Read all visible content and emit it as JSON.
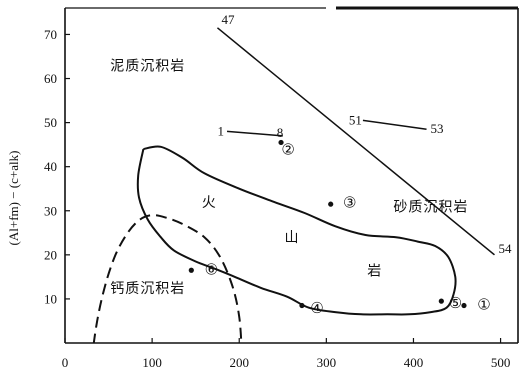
{
  "chart_data": {
    "type": "scatter",
    "ylabel": "(Al+fm) − (c+alk)",
    "xlim": [
      0,
      520
    ],
    "ylim": [
      0,
      76
    ],
    "x_ticks": [
      0,
      100,
      200,
      300,
      400,
      500
    ],
    "y_ticks": [
      10,
      20,
      30,
      40,
      50,
      60,
      70
    ],
    "points": [
      {
        "label": "①",
        "x": 458,
        "y": 8.5
      },
      {
        "label": "②",
        "x": 248,
        "y": 45.5
      },
      {
        "label": "③",
        "x": 305,
        "y": 31.5
      },
      {
        "label": "④",
        "x": 272,
        "y": 8.5
      },
      {
        "label": "⑤",
        "x": 432,
        "y": 9.5
      },
      {
        "label": "⑥",
        "x": 145,
        "y": 16.5
      }
    ],
    "lines": [
      {
        "start_label": "47",
        "end_label": "54",
        "points": [
          [
            175,
            71.5
          ],
          [
            493,
            20
          ]
        ]
      },
      {
        "start_label": "1",
        "end_label": "8",
        "points": [
          [
            186,
            48
          ],
          [
            250,
            47
          ]
        ]
      },
      {
        "start_label": "51",
        "end_label": "53",
        "points": [
          [
            342,
            50.5
          ],
          [
            415,
            48.5
          ]
        ]
      }
    ],
    "region_labels": [
      {
        "text": "泥质沉积岩",
        "x": 95,
        "y": 63
      },
      {
        "text": "砂质沉积岩",
        "x": 420,
        "y": 31
      },
      {
        "text": "钙质沉积岩",
        "x": 95,
        "y": 12.5
      },
      {
        "text": "火",
        "x": 165,
        "y": 32
      },
      {
        "text": "山",
        "x": 260,
        "y": 24
      },
      {
        "text": "岩",
        "x": 355,
        "y": 16.5
      }
    ],
    "volcanic_field": [
      [
        90,
        44
      ],
      [
        110,
        44.5
      ],
      [
        135,
        42
      ],
      [
        160,
        38.5
      ],
      [
        200,
        35
      ],
      [
        240,
        32
      ],
      [
        275,
        29.5
      ],
      [
        310,
        26.5
      ],
      [
        345,
        24.5
      ],
      [
        380,
        24
      ],
      [
        405,
        23
      ],
      [
        425,
        22
      ],
      [
        440,
        19.5
      ],
      [
        448,
        15
      ],
      [
        446,
        11
      ],
      [
        438,
        8
      ],
      [
        420,
        7
      ],
      [
        395,
        6.5
      ],
      [
        370,
        6.5
      ],
      [
        340,
        6.5
      ],
      [
        310,
        7
      ],
      [
        280,
        8
      ],
      [
        255,
        10.5
      ],
      [
        225,
        12.5
      ],
      [
        195,
        15
      ],
      [
        170,
        17
      ],
      [
        150,
        18.5
      ],
      [
        125,
        21
      ],
      [
        110,
        24
      ],
      [
        95,
        28
      ],
      [
        85,
        33
      ],
      [
        84,
        38
      ],
      [
        90,
        44
      ]
    ],
    "calcareous_boundary": [
      [
        28,
        -8
      ],
      [
        36,
        4
      ],
      [
        46,
        13
      ],
      [
        58,
        20
      ],
      [
        72,
        25
      ],
      [
        86,
        28
      ],
      [
        100,
        29
      ],
      [
        115,
        28.5
      ],
      [
        135,
        27
      ],
      [
        160,
        24
      ],
      [
        178,
        19.5
      ],
      [
        192,
        13
      ],
      [
        200,
        6
      ],
      [
        203,
        -2
      ]
    ]
  }
}
